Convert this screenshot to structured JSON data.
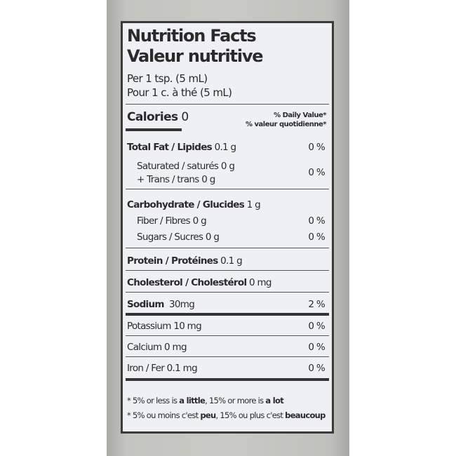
{
  "title_en": "Nutrition Facts",
  "title_fr": "Valeur nutritive",
  "serving_en": "Per 1 tsp. (5 mL)",
  "serving_fr": "Pour 1 c. à thé (5 mL)",
  "calories": {
    "label": "Calories",
    "value": "0"
  },
  "dv_header_en": "% Daily Value*",
  "dv_header_fr": "% valeur quotidienne*",
  "nutrients": {
    "total_fat": {
      "label": "Total Fat / Lipides",
      "amount": "0.1 g",
      "dv": "0 %"
    },
    "saturated": {
      "label": "Saturated / saturés",
      "amount": "0 g"
    },
    "trans": {
      "label": "+ Trans / trans",
      "amount": "0 g",
      "dv": "0 %"
    },
    "carbohydrate": {
      "label": "Carbohydrate / Glucides",
      "amount": "1 g"
    },
    "fiber": {
      "label": "Fiber / Fibres",
      "amount": "0 g",
      "dv": "0 %"
    },
    "sugars": {
      "label": "Sugars / Sucres",
      "amount": "0 g",
      "dv": "0 %"
    },
    "protein": {
      "label": "Protein / Protéines",
      "amount": "0.1 g"
    },
    "cholesterol": {
      "label": "Cholesterol / Cholestérol",
      "amount": "0 mg"
    },
    "sodium": {
      "label": "Sodium",
      "amount": "30mg",
      "dv": "2 %"
    },
    "potassium": {
      "label": "Potassium",
      "amount": "10 mg",
      "dv": "0 %"
    },
    "calcium": {
      "label": "Calcium",
      "amount": "0 mg",
      "dv": "0 %"
    },
    "iron": {
      "label": "Iron / Fer",
      "amount": "0.1 mg",
      "dv": "0 %"
    }
  },
  "footnote_en": {
    "a": "* 5% or less is ",
    "b": "a little",
    "c": ", 15% or more is ",
    "d": "a lot"
  },
  "footnote_fr": {
    "a": "* 5% ou moins c'est ",
    "b": "peu",
    "c": ", 15% ou plus c'est ",
    "d": "beaucoup"
  }
}
